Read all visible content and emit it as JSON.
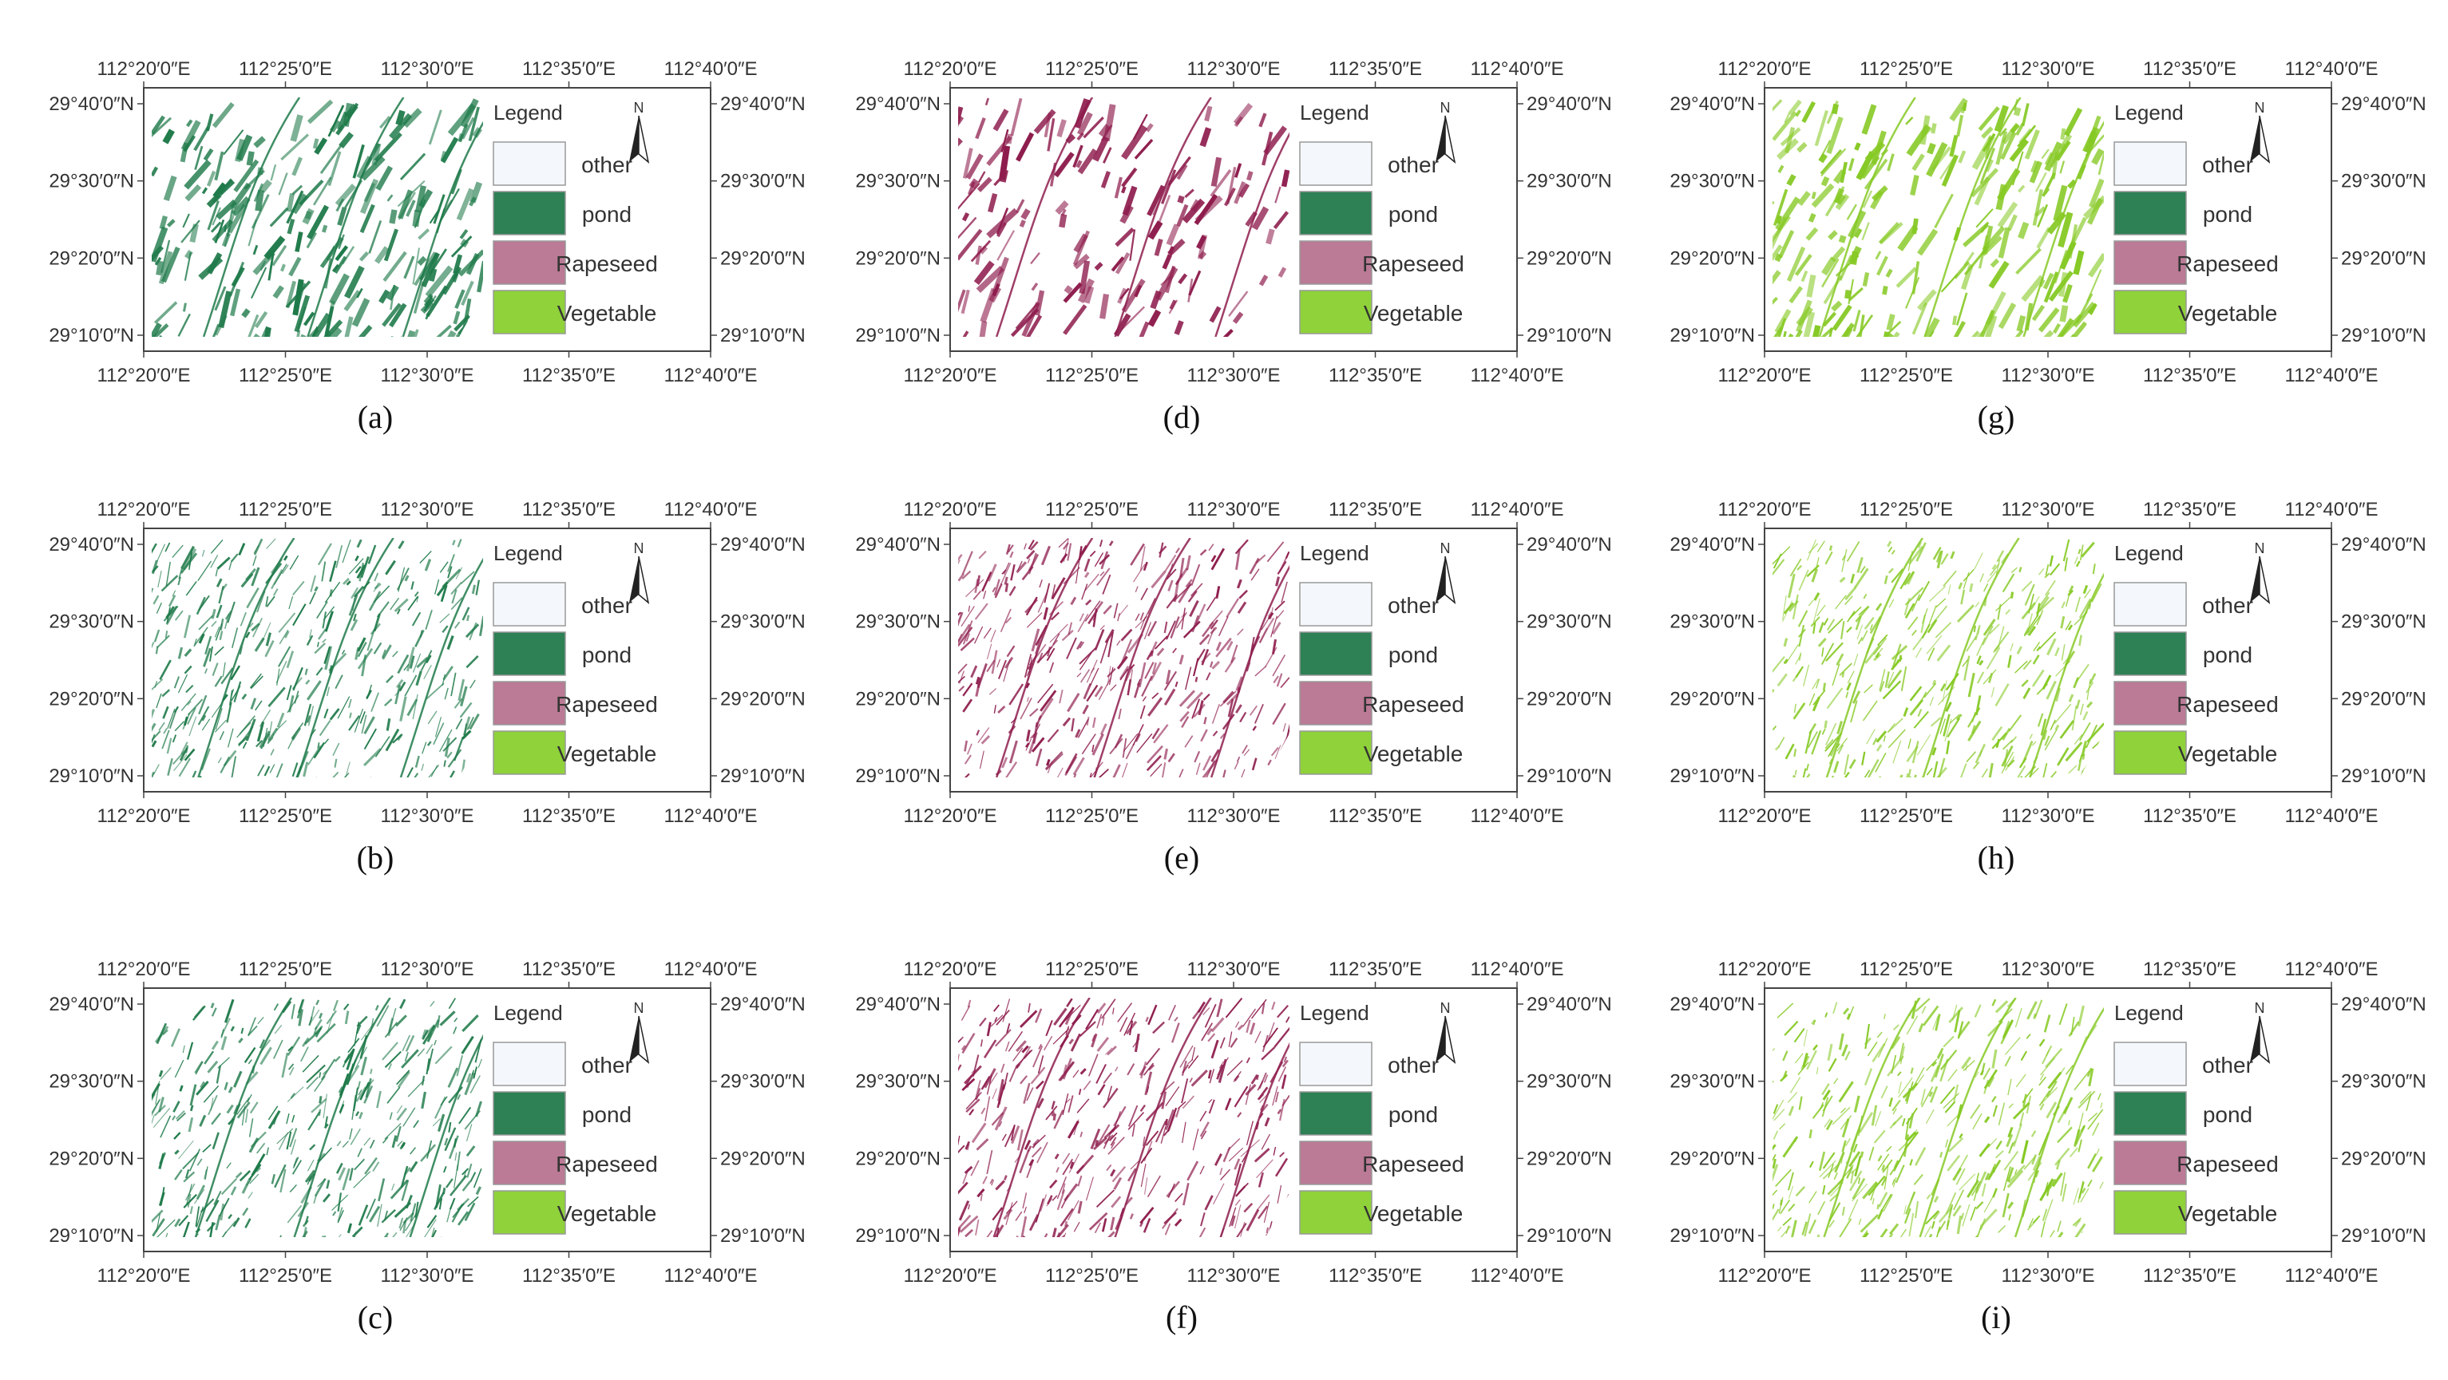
{
  "figure": {
    "coord_labels": {
      "lon": [
        "112°20′0″E",
        "112°25′0″E",
        "112°30′0″E",
        "112°35′0″E",
        "112°40′0″E"
      ],
      "lat": [
        "29°40′0″N",
        "29°30′0″N",
        "29°20′0″N",
        "29°10′0″N"
      ]
    },
    "legend": {
      "title": "Legend",
      "north_label": "N",
      "items": [
        {
          "label": "other",
          "color": "#f4f8fc"
        },
        {
          "label": "pond",
          "color": "#2e8055"
        },
        {
          "label": "Rapeseed",
          "color": "#bb7a95"
        },
        {
          "label": "Vegetable",
          "color": "#8fd23a"
        }
      ]
    },
    "panels": [
      {
        "caption": "(a)",
        "class": "pond",
        "pattern": "dense"
      },
      {
        "caption": "(b)",
        "class": "pond",
        "pattern": "fine"
      },
      {
        "caption": "(c)",
        "class": "pond",
        "pattern": "fine"
      },
      {
        "caption": "(d)",
        "class": "Rapeseed",
        "pattern": "sparse"
      },
      {
        "caption": "(e)",
        "class": "Rapeseed",
        "pattern": "fine"
      },
      {
        "caption": "(f)",
        "class": "Rapeseed",
        "pattern": "fine"
      },
      {
        "caption": "(g)",
        "class": "Vegetable",
        "pattern": "dense"
      },
      {
        "caption": "(h)",
        "class": "Vegetable",
        "pattern": "fine"
      },
      {
        "caption": "(i)",
        "class": "Vegetable",
        "pattern": "fine"
      }
    ],
    "map_colors": {
      "pond": "#1f7a4a",
      "Rapeseed": "#8e1d4d",
      "Vegetable": "#86c924"
    }
  }
}
